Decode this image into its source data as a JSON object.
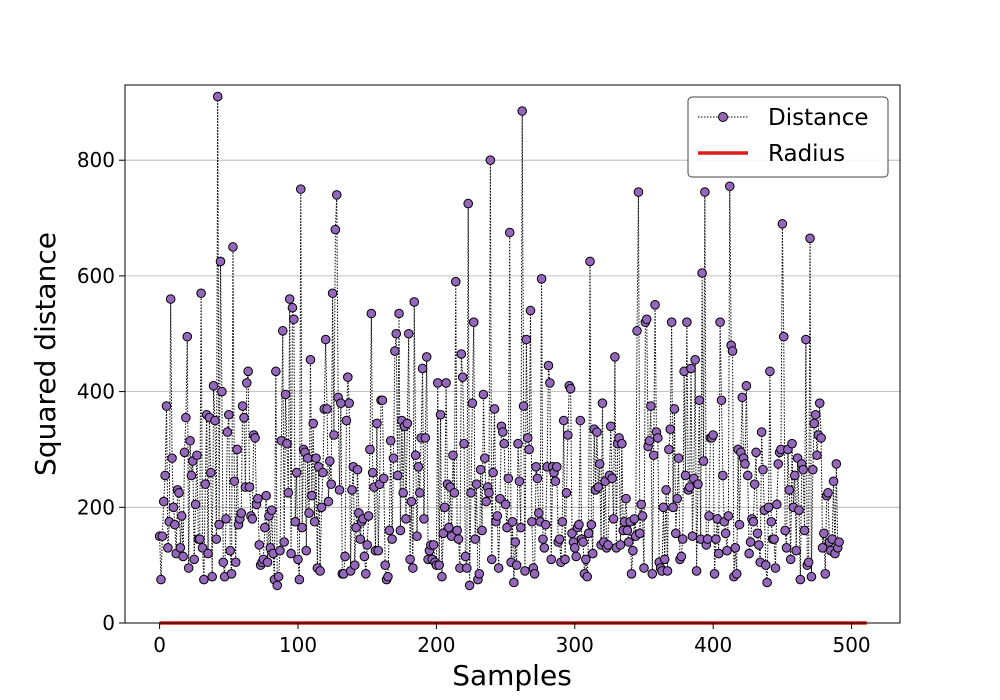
{
  "chart_data": {
    "type": "line",
    "xlabel": "Samples",
    "ylabel": "Squared distance",
    "xlim": [
      -25,
      535
    ],
    "ylim": [
      0,
      930
    ],
    "xticks": [
      0,
      100,
      200,
      300,
      400,
      500
    ],
    "yticks": [
      0,
      200,
      400,
      600,
      800
    ],
    "grid": "horizontal",
    "legend_position": "top-right",
    "series": [
      {
        "name": "Distance",
        "style": "dotted line with circle markers",
        "marker_color": "#9467bd",
        "note": "one value per sample, approximately read from the plot",
        "values": [
          150,
          75,
          150,
          210,
          255,
          375,
          130,
          175,
          560,
          285,
          200,
          170,
          120,
          230,
          225,
          130,
          185,
          115,
          295,
          355,
          495,
          95,
          315,
          255,
          280,
          110,
          205,
          290,
          145,
          145,
          570,
          130,
          75,
          240,
          360,
          120,
          355,
          260,
          80,
          410,
          350,
          145,
          910,
          170,
          625,
          400,
          105,
          80,
          180,
          330,
          360,
          125,
          85,
          650,
          245,
          105,
          300,
          170,
          180,
          190,
          375,
          355,
          235,
          415,
          435,
          235,
          185,
          180,
          325,
          320,
          205,
          215,
          135,
          100,
          105,
          110,
          165,
          220,
          105,
          185,
          130,
          195,
          120,
          75,
          435,
          65,
          80,
          125,
          315,
          505,
          140,
          395,
          310,
          225,
          560,
          120,
          545,
          525,
          175,
          260,
          110,
          75,
          750,
          165,
          300,
          295,
          125,
          285,
          190,
          455,
          220,
          345,
          175,
          285,
          95,
          270,
          90,
          200,
          260,
          370,
          490,
          370,
          210,
          280,
          240,
          570,
          325,
          680,
          740,
          390,
          230,
          380,
          85,
          85,
          115,
          350,
          425,
          380,
          90,
          230,
          270,
          100,
          165,
          265,
          190,
          145,
          175,
          180,
          115,
          85,
          135,
          185,
          300,
          535,
          260,
          235,
          125,
          345,
          125,
          240,
          385,
          385,
          250,
          100,
          75,
          80,
          160,
          315,
          145,
          285,
          470,
          500,
          255,
          535,
          160,
          350,
          225,
          340,
          180,
          345,
          500,
          110,
          210,
          95,
          555,
          290,
          150,
          270,
          225,
          320,
          440,
          180,
          320,
          460,
          110,
          125,
          135,
          110,
          135,
          105,
          100,
          415,
          100,
          360,
          80,
          155,
          200,
          415,
          240,
          165,
          235,
          150,
          290,
          225,
          590,
          160,
          145,
          95,
          465,
          425,
          310,
          115,
          95,
          725,
          65,
          225,
          380,
          520,
          145,
          240,
          75,
          85,
          265,
          160,
          395,
          285,
          210,
          235,
          225,
          800,
          110,
          260,
          370,
          175,
          185,
          95,
          215,
          340,
          330,
          310,
          205,
          165,
          250,
          675,
          105,
          175,
          70,
          140,
          100,
          310,
          245,
          165,
          885,
          375,
          90,
          490,
          320,
          300,
          540,
          175,
          95,
          85,
          270,
          250,
          190,
          175,
          595,
          145,
          130,
          170,
          270,
          445,
          415,
          110,
          270,
          260,
          245,
          270,
          140,
          145,
          105,
          175,
          350,
          110,
          225,
          325,
          410,
          405,
          155,
          140,
          130,
          115,
          165,
          170,
          350,
          145,
          140,
          85,
          110,
          80,
          155,
          625,
          170,
          120,
          335,
          230,
          330,
          235,
          275,
          135,
          380,
          140,
          245,
          130,
          135,
          255,
          340,
          250,
          180,
          460,
          130,
          310,
          320,
          135,
          310,
          160,
          175,
          215,
          160,
          140,
          175,
          85,
          125,
          180,
          150,
          505,
          745,
          155,
          205,
          185,
          95,
          520,
          525,
          305,
          315,
          375,
          85,
          290,
          550,
          330,
          320,
          105,
          95,
          90,
          200,
          110,
          230,
          90,
          300,
          335,
          520,
          200,
          370,
          155,
          215,
          285,
          110,
          115,
          145,
          435,
          255,
          520,
          230,
          235,
          440,
          150,
          250,
          455,
          90,
          240,
          385,
          145,
          605,
          280,
          745,
          135,
          145,
          185,
          320,
          320,
          325,
          85,
          145,
          180,
          120,
          520,
          385,
          255,
          175,
          155,
          125,
          185,
          755,
          480,
          470,
          80,
          130,
          85,
          300,
          170,
          295,
          390,
          285,
          275,
          410,
          255,
          120,
          140,
          180,
          175,
          240,
          295,
          155,
          135,
          105,
          330,
          265,
          195,
          100,
          70,
          200,
          435,
          175,
          145,
          145,
          95,
          205,
          275,
          295,
          300,
          690,
          495,
          160,
          130,
          300,
          230,
          110,
          310,
          200,
          255,
          125,
          285,
          195,
          75,
          275,
          265,
          160,
          490,
          100,
          105,
          665,
          80,
          265,
          345,
          360,
          290,
          325,
          380,
          320,
          130,
          155,
          85,
          220,
          225,
          140,
          125,
          145,
          245,
          120,
          275,
          130,
          140
        ]
      },
      {
        "name": "Radius",
        "style": "solid line",
        "color": "#e31a1c",
        "values": [
          0,
          0
        ],
        "x": [
          0,
          511
        ]
      }
    ]
  }
}
